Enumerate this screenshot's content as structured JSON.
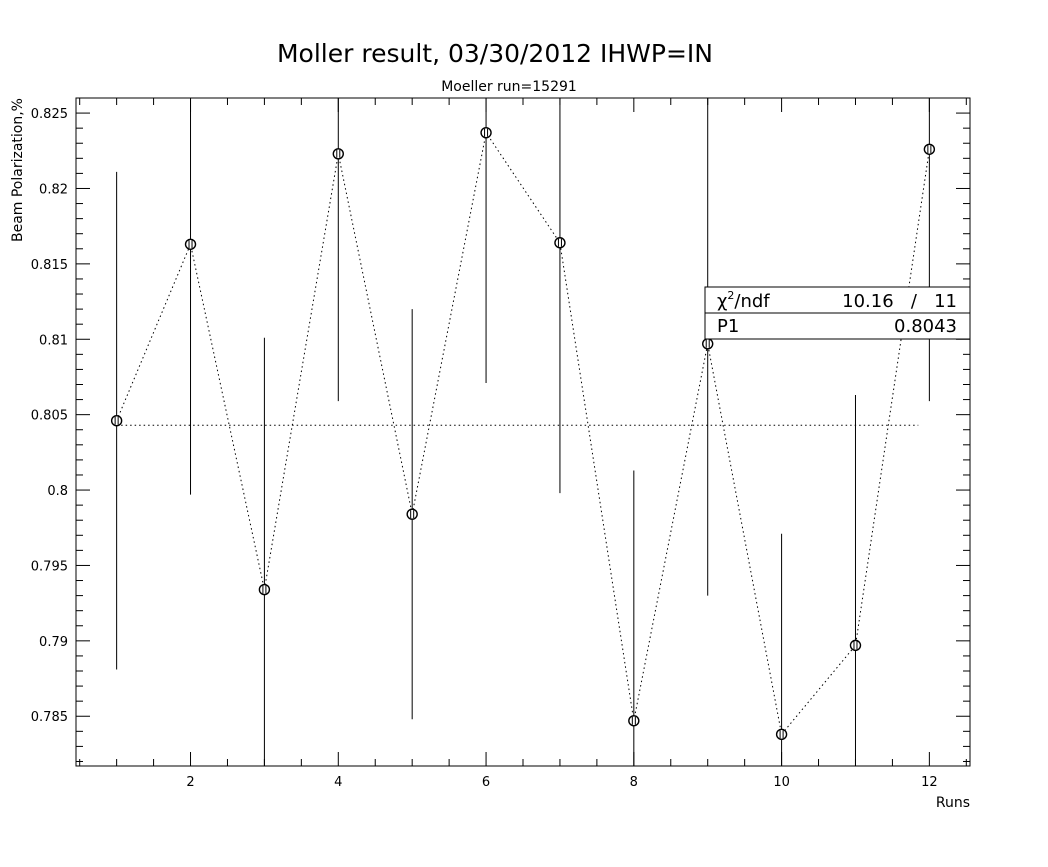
{
  "chart_data": {
    "type": "scatter",
    "title": "Moller result, 03/30/2012 IHWP=IN",
    "subtitle": "Moeller run=15291",
    "xlabel": "Runs",
    "ylabel": "Beam Polarization,%",
    "xlim": [
      0.45,
      12.55
    ],
    "ylim": [
      0.7817,
      0.826
    ],
    "x_ticks": [
      {
        "value": 2,
        "label": "2"
      },
      {
        "value": 4,
        "label": "4"
      },
      {
        "value": 6,
        "label": "6"
      },
      {
        "value": 8,
        "label": "8"
      },
      {
        "value": 10,
        "label": "10"
      },
      {
        "value": 12,
        "label": "12"
      }
    ],
    "y_ticks": [
      {
        "value": 0.785,
        "label": "0.785"
      },
      {
        "value": 0.79,
        "label": "0.79"
      },
      {
        "value": 0.795,
        "label": "0.795"
      },
      {
        "value": 0.8,
        "label": "0.8"
      },
      {
        "value": 0.805,
        "label": "0.805"
      },
      {
        "value": 0.81,
        "label": "0.81"
      },
      {
        "value": 0.815,
        "label": "0.815"
      },
      {
        "value": 0.82,
        "label": "0.82"
      },
      {
        "value": 0.825,
        "label": "0.825"
      }
    ],
    "points": [
      {
        "x": 1,
        "y": 0.8046,
        "err": 0.0165
      },
      {
        "x": 2,
        "y": 0.8163,
        "err": 0.0166
      },
      {
        "x": 3,
        "y": 0.7934,
        "err": 0.0167
      },
      {
        "x": 4,
        "y": 0.8223,
        "err": 0.0164
      },
      {
        "x": 5,
        "y": 0.7984,
        "err": 0.0136
      },
      {
        "x": 6,
        "y": 0.8237,
        "err": 0.0166
      },
      {
        "x": 7,
        "y": 0.8164,
        "err": 0.0166
      },
      {
        "x": 8,
        "y": 0.7847,
        "err": 0.0166
      },
      {
        "x": 9,
        "y": 0.8097,
        "err": 0.0167
      },
      {
        "x": 10,
        "y": 0.7838,
        "err": 0.0133
      },
      {
        "x": 11,
        "y": 0.7897,
        "err": 0.0166
      },
      {
        "x": 12,
        "y": 0.8226,
        "err": 0.0167
      }
    ],
    "fit": {
      "name": "P1",
      "value": 0.8043,
      "x_range": [
        1,
        11.85
      ]
    },
    "grid": false,
    "legend": "none",
    "stats_box": {
      "placement": "right",
      "rows": [
        {
          "label": "χ²/ndf",
          "value": "10.16   /   11"
        },
        {
          "label": "P1",
          "value": "0.8043"
        }
      ]
    }
  }
}
